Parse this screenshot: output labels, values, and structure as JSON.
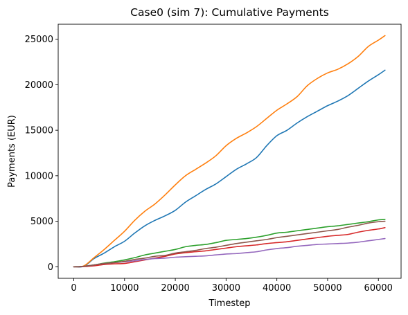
{
  "chart_data": {
    "type": "line",
    "title": "Case0 (sim 7): Cumulative Payments",
    "xlabel": "Timestep",
    "ylabel": "Payments (EUR)",
    "xlim": [
      -3070,
      64470
    ],
    "ylim": [
      -1270,
      26650
    ],
    "xticks": [
      0,
      10000,
      20000,
      30000,
      40000,
      50000,
      60000
    ],
    "xtick_labels": [
      "0",
      "10000",
      "20000",
      "30000",
      "40000",
      "50000",
      "60000"
    ],
    "yticks": [
      0,
      5000,
      10000,
      15000,
      20000,
      25000
    ],
    "ytick_labels": [
      "0",
      "5000",
      "10000",
      "15000",
      "20000",
      "25000"
    ],
    "grid": false,
    "legend": null,
    "series": [
      {
        "color": "#1f77b4",
        "points": [
          [
            0,
            0
          ],
          [
            2000,
            50
          ],
          [
            4000,
            900
          ],
          [
            6000,
            1500
          ],
          [
            8000,
            2200
          ],
          [
            10000,
            2800
          ],
          [
            12000,
            3700
          ],
          [
            14000,
            4500
          ],
          [
            16000,
            5100
          ],
          [
            18000,
            5600
          ],
          [
            20000,
            6200
          ],
          [
            22000,
            7100
          ],
          [
            24000,
            7800
          ],
          [
            26000,
            8500
          ],
          [
            28000,
            9100
          ],
          [
            30000,
            9900
          ],
          [
            32000,
            10700
          ],
          [
            34000,
            11300
          ],
          [
            36000,
            12000
          ],
          [
            38000,
            13300
          ],
          [
            40000,
            14400
          ],
          [
            42000,
            15000
          ],
          [
            44000,
            15800
          ],
          [
            46000,
            16500
          ],
          [
            48000,
            17100
          ],
          [
            50000,
            17700
          ],
          [
            52000,
            18200
          ],
          [
            54000,
            18800
          ],
          [
            56000,
            19600
          ],
          [
            58000,
            20400
          ],
          [
            60000,
            21100
          ],
          [
            61300,
            21600
          ]
        ]
      },
      {
        "color": "#ff7f0e",
        "points": [
          [
            0,
            0
          ],
          [
            2000,
            100
          ],
          [
            4000,
            1000
          ],
          [
            6000,
            1900
          ],
          [
            8000,
            2900
          ],
          [
            10000,
            3900
          ],
          [
            12000,
            5100
          ],
          [
            14000,
            6100
          ],
          [
            16000,
            6900
          ],
          [
            18000,
            7900
          ],
          [
            20000,
            9000
          ],
          [
            22000,
            10000
          ],
          [
            24000,
            10700
          ],
          [
            26000,
            11400
          ],
          [
            28000,
            12200
          ],
          [
            30000,
            13300
          ],
          [
            32000,
            14100
          ],
          [
            34000,
            14700
          ],
          [
            36000,
            15400
          ],
          [
            38000,
            16300
          ],
          [
            40000,
            17200
          ],
          [
            42000,
            17900
          ],
          [
            44000,
            18700
          ],
          [
            46000,
            19900
          ],
          [
            48000,
            20700
          ],
          [
            50000,
            21300
          ],
          [
            52000,
            21700
          ],
          [
            54000,
            22300
          ],
          [
            56000,
            23100
          ],
          [
            58000,
            24200
          ],
          [
            60000,
            24900
          ],
          [
            61300,
            25400
          ]
        ]
      },
      {
        "color": "#2ca02c",
        "points": [
          [
            0,
            0
          ],
          [
            2000,
            50
          ],
          [
            4000,
            200
          ],
          [
            6000,
            400
          ],
          [
            8000,
            550
          ],
          [
            10000,
            750
          ],
          [
            12000,
            1000
          ],
          [
            14000,
            1300
          ],
          [
            16000,
            1500
          ],
          [
            18000,
            1700
          ],
          [
            20000,
            1900
          ],
          [
            22000,
            2200
          ],
          [
            24000,
            2350
          ],
          [
            26000,
            2450
          ],
          [
            28000,
            2650
          ],
          [
            30000,
            2900
          ],
          [
            32000,
            3000
          ],
          [
            34000,
            3100
          ],
          [
            36000,
            3250
          ],
          [
            38000,
            3450
          ],
          [
            40000,
            3700
          ],
          [
            42000,
            3800
          ],
          [
            44000,
            3950
          ],
          [
            46000,
            4100
          ],
          [
            48000,
            4250
          ],
          [
            50000,
            4400
          ],
          [
            52000,
            4500
          ],
          [
            54000,
            4650
          ],
          [
            56000,
            4800
          ],
          [
            58000,
            4950
          ],
          [
            60000,
            5150
          ],
          [
            61300,
            5200
          ]
        ]
      },
      {
        "color": "#d62728",
        "points": [
          [
            0,
            0
          ],
          [
            2000,
            20
          ],
          [
            4000,
            100
          ],
          [
            6000,
            250
          ],
          [
            8000,
            320
          ],
          [
            10000,
            360
          ],
          [
            12000,
            550
          ],
          [
            14000,
            750
          ],
          [
            16000,
            950
          ],
          [
            18000,
            1150
          ],
          [
            20000,
            1400
          ],
          [
            22000,
            1550
          ],
          [
            24000,
            1650
          ],
          [
            26000,
            1750
          ],
          [
            28000,
            1900
          ],
          [
            30000,
            2050
          ],
          [
            32000,
            2200
          ],
          [
            34000,
            2300
          ],
          [
            36000,
            2400
          ],
          [
            38000,
            2550
          ],
          [
            40000,
            2650
          ],
          [
            42000,
            2750
          ],
          [
            44000,
            2900
          ],
          [
            46000,
            3050
          ],
          [
            48000,
            3200
          ],
          [
            50000,
            3350
          ],
          [
            52000,
            3450
          ],
          [
            54000,
            3550
          ],
          [
            56000,
            3800
          ],
          [
            58000,
            4000
          ],
          [
            60000,
            4150
          ],
          [
            61300,
            4300
          ]
        ]
      },
      {
        "color": "#9467bd",
        "points": [
          [
            0,
            0
          ],
          [
            2000,
            50
          ],
          [
            4000,
            200
          ],
          [
            6000,
            350
          ],
          [
            8000,
            450
          ],
          [
            10000,
            550
          ],
          [
            12000,
            650
          ],
          [
            14000,
            800
          ],
          [
            16000,
            900
          ],
          [
            18000,
            950
          ],
          [
            20000,
            1050
          ],
          [
            22000,
            1100
          ],
          [
            24000,
            1150
          ],
          [
            26000,
            1200
          ],
          [
            28000,
            1300
          ],
          [
            30000,
            1400
          ],
          [
            32000,
            1450
          ],
          [
            34000,
            1550
          ],
          [
            36000,
            1650
          ],
          [
            38000,
            1850
          ],
          [
            40000,
            2000
          ],
          [
            42000,
            2100
          ],
          [
            44000,
            2250
          ],
          [
            46000,
            2350
          ],
          [
            48000,
            2450
          ],
          [
            50000,
            2500
          ],
          [
            52000,
            2550
          ],
          [
            54000,
            2600
          ],
          [
            56000,
            2700
          ],
          [
            58000,
            2850
          ],
          [
            60000,
            3000
          ],
          [
            61300,
            3100
          ]
        ]
      },
      {
        "color": "#8c564b",
        "points": [
          [
            0,
            0
          ],
          [
            2000,
            50
          ],
          [
            4000,
            200
          ],
          [
            6000,
            350
          ],
          [
            8000,
            450
          ],
          [
            10000,
            600
          ],
          [
            12000,
            800
          ],
          [
            14000,
            950
          ],
          [
            16000,
            1150
          ],
          [
            18000,
            1250
          ],
          [
            20000,
            1500
          ],
          [
            22000,
            1650
          ],
          [
            24000,
            1800
          ],
          [
            26000,
            2000
          ],
          [
            28000,
            2150
          ],
          [
            30000,
            2350
          ],
          [
            32000,
            2550
          ],
          [
            34000,
            2700
          ],
          [
            36000,
            2850
          ],
          [
            38000,
            3000
          ],
          [
            40000,
            3200
          ],
          [
            42000,
            3350
          ],
          [
            44000,
            3500
          ],
          [
            46000,
            3650
          ],
          [
            48000,
            3800
          ],
          [
            50000,
            3950
          ],
          [
            52000,
            4100
          ],
          [
            54000,
            4350
          ],
          [
            56000,
            4550
          ],
          [
            58000,
            4800
          ],
          [
            60000,
            4950
          ],
          [
            61300,
            5000
          ]
        ]
      }
    ]
  }
}
